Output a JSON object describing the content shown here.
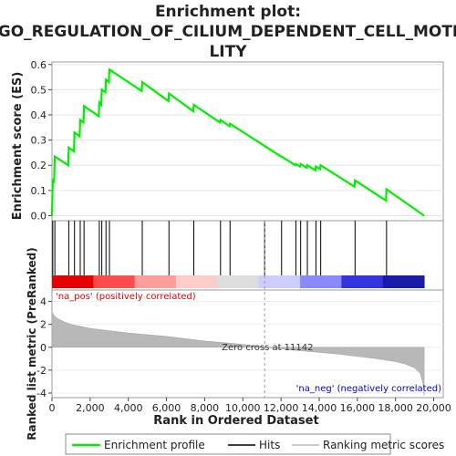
{
  "title_line1": "Enrichment plot:",
  "title_line2": "GO_REGULATION_OF_CILIUM_DEPENDENT_CELL_MOTI",
  "title_line3": "LITY",
  "colors": {
    "es_line": "#00ee00",
    "pos_label": "#dd0000",
    "neg_label": "#0000cc",
    "metric_fill": "#b8b8b8",
    "zero_line": "#999999",
    "panel_border": "#999999"
  },
  "chart_data": [
    {
      "type": "line",
      "name": "enrichment-profile",
      "ylabel": "Enrichment score (ES)",
      "xlim": [
        0,
        20500
      ],
      "ylim": [
        -0.02,
        0.61
      ],
      "yticks": [
        0.0,
        0.1,
        0.2,
        0.3,
        0.4,
        0.5,
        0.6
      ],
      "ytick_labels": [
        "0.0",
        "0.1",
        "0.2",
        "0.3",
        "0.4",
        "0.5",
        "0.6"
      ],
      "points": [
        [
          0,
          0.0
        ],
        [
          40,
          0.14
        ],
        [
          110,
          0.135
        ],
        [
          150,
          0.235
        ],
        [
          850,
          0.2
        ],
        [
          880,
          0.27
        ],
        [
          1150,
          0.255
        ],
        [
          1180,
          0.33
        ],
        [
          1450,
          0.315
        ],
        [
          1480,
          0.38
        ],
        [
          1650,
          0.37
        ],
        [
          1680,
          0.435
        ],
        [
          2450,
          0.395
        ],
        [
          2480,
          0.45
        ],
        [
          2580,
          0.44
        ],
        [
          2610,
          0.5
        ],
        [
          2800,
          0.49
        ],
        [
          2830,
          0.54
        ],
        [
          2980,
          0.53
        ],
        [
          3010,
          0.58
        ],
        [
          4700,
          0.495
        ],
        [
          4730,
          0.53
        ],
        [
          6100,
          0.455
        ],
        [
          6130,
          0.485
        ],
        [
          7400,
          0.415
        ],
        [
          7430,
          0.44
        ],
        [
          8800,
          0.37
        ],
        [
          8830,
          0.38
        ],
        [
          9300,
          0.355
        ],
        [
          9330,
          0.365
        ],
        [
          12000,
          0.235
        ],
        [
          12030,
          0.235
        ],
        [
          12750,
          0.2
        ],
        [
          12780,
          0.205
        ],
        [
          13000,
          0.195
        ],
        [
          13030,
          0.205
        ],
        [
          13350,
          0.19
        ],
        [
          13380,
          0.2
        ],
        [
          13800,
          0.18
        ],
        [
          13830,
          0.195
        ],
        [
          14050,
          0.185
        ],
        [
          14080,
          0.2
        ],
        [
          15850,
          0.115
        ],
        [
          15880,
          0.14
        ],
        [
          17500,
          0.06
        ],
        [
          17530,
          0.105
        ],
        [
          19500,
          0.0
        ]
      ]
    },
    {
      "type": "heatmap",
      "name": "hit-ticks",
      "hits": [
        40,
        150,
        880,
        1180,
        1480,
        1680,
        2480,
        2610,
        2830,
        3010,
        4730,
        6130,
        7430,
        8830,
        9330,
        11142,
        12030,
        12780,
        13030,
        13380,
        13830,
        14080,
        15880,
        17530
      ],
      "color_stops": [
        "#e60000",
        "#ff4d4d",
        "#ff9c9c",
        "#ffcccc",
        "#dddddd",
        "#ccccff",
        "#8a8aff",
        "#3333e0",
        "#1a1aa8"
      ]
    },
    {
      "type": "area",
      "name": "ranked-list-metric",
      "xlabel": "Rank in Ordered Dataset",
      "ylabel": "Ranked list metric (PreRanked)",
      "xlim": [
        0,
        20500
      ],
      "ylim": [
        -4.4,
        5.0
      ],
      "yticks": [
        -4,
        -2,
        0,
        2,
        4
      ],
      "ytick_labels": [
        "-4",
        "-2",
        "0",
        "2",
        "4"
      ],
      "xticks": [
        0,
        2000,
        4000,
        6000,
        8000,
        10000,
        12000,
        14000,
        16000,
        18000,
        20000
      ],
      "xtick_labels": [
        "0",
        "2,000",
        "4,000",
        "6,000",
        "8,000",
        "10,000",
        "12,000",
        "14,000",
        "16,000",
        "18,000",
        "20,000"
      ],
      "points": [
        [
          0,
          3.1
        ],
        [
          100,
          2.8
        ],
        [
          300,
          2.5
        ],
        [
          600,
          2.25
        ],
        [
          1000,
          2.0
        ],
        [
          2000,
          1.65
        ],
        [
          3000,
          1.45
        ],
        [
          4000,
          1.25
        ],
        [
          5000,
          1.1
        ],
        [
          6000,
          0.95
        ],
        [
          7000,
          0.75
        ],
        [
          8000,
          0.55
        ],
        [
          9000,
          0.4
        ],
        [
          10000,
          0.25
        ],
        [
          11142,
          0.0
        ],
        [
          12000,
          -0.15
        ],
        [
          13000,
          -0.3
        ],
        [
          14000,
          -0.45
        ],
        [
          15000,
          -0.6
        ],
        [
          16000,
          -0.8
        ],
        [
          17000,
          -1.0
        ],
        [
          18000,
          -1.25
        ],
        [
          18500,
          -1.45
        ],
        [
          19000,
          -1.8
        ],
        [
          19300,
          -2.3
        ],
        [
          19450,
          -3.2
        ],
        [
          19500,
          -4.2
        ]
      ],
      "zero_cross_rank": 11142,
      "zero_cross_label": "Zero cross at 11142",
      "pos_label": "'na_pos' (positively correlated)",
      "neg_label": "'na_neg' (negatively correlated)"
    }
  ],
  "legend": {
    "items": [
      "Enrichment profile",
      "Hits",
      "Ranking metric scores"
    ]
  }
}
